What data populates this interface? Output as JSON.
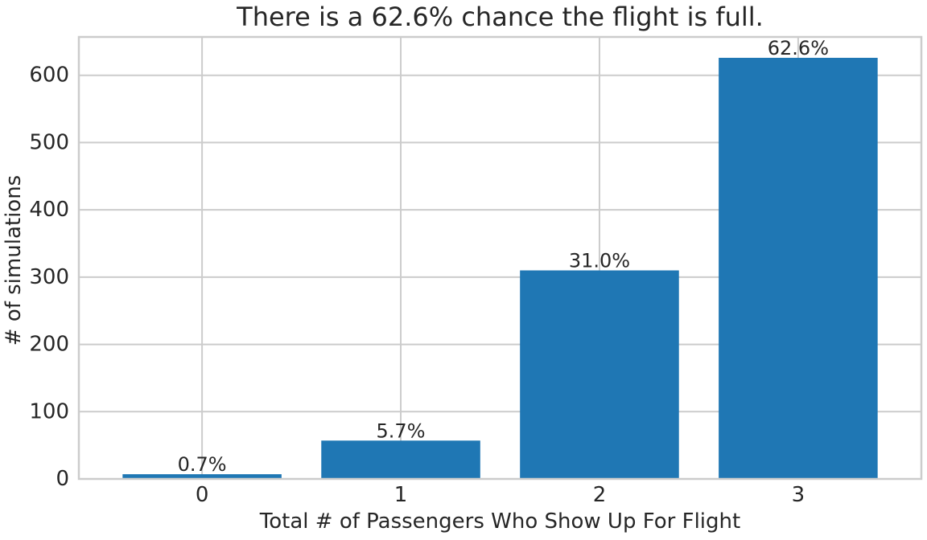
{
  "chart_data": {
    "type": "bar",
    "title": "There is a 62.6% chance the flight is full.",
    "xlabel": "Total # of Passengers Who Show Up For Flight",
    "ylabel": "# of simulations",
    "categories": [
      "0",
      "1",
      "2",
      "3"
    ],
    "values": [
      7,
      57,
      310,
      626
    ],
    "data_labels": [
      "0.7%",
      "5.7%",
      "31.0%",
      "62.6%"
    ],
    "ylim": [
      0,
      657
    ],
    "yticks": [
      0,
      100,
      200,
      300,
      400,
      500,
      600
    ],
    "grid": true,
    "bar_color": "#1f77b4",
    "grid_color": "#cccccc",
    "text_color": "#262626"
  }
}
